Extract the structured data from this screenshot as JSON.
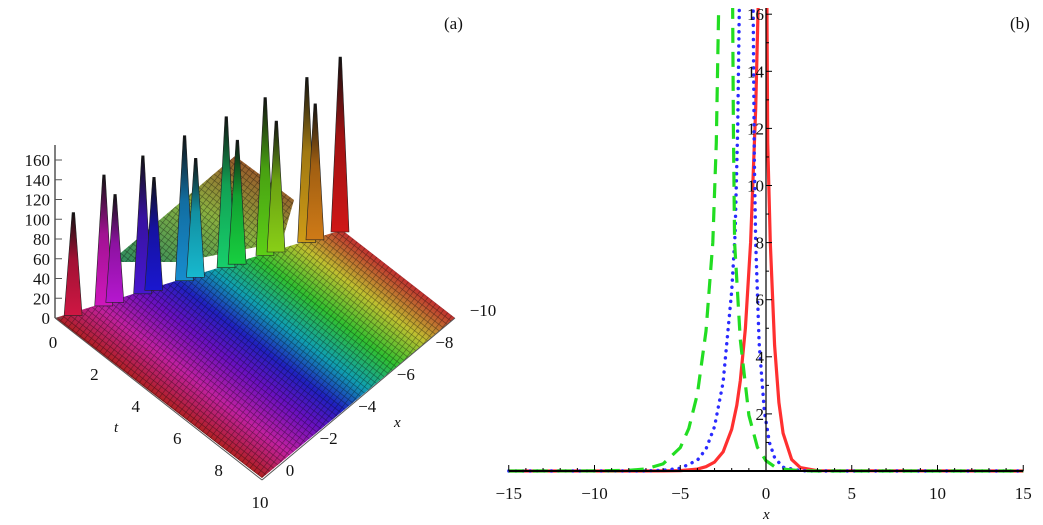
{
  "chart_data": [
    {
      "panel_label": "(a)",
      "type": "surface",
      "xlabel": "x",
      "tlabel": "t",
      "x_ticks": [
        "0",
        "−2",
        "−4",
        "−6",
        "−8",
        "−10"
      ],
      "x_tick_values": [
        0,
        -2,
        -4,
        -6,
        -8,
        -10
      ],
      "t_ticks": [
        "0",
        "2",
        "4",
        "6",
        "8",
        "10"
      ],
      "t_tick_values": [
        0,
        2,
        4,
        6,
        8,
        10
      ],
      "z_ticks": [
        "0",
        "20",
        "40",
        "60",
        "80",
        "100",
        "120",
        "140",
        "160"
      ],
      "z_tick_values": [
        0,
        20,
        40,
        60,
        80,
        100,
        120,
        140,
        160
      ],
      "xlim": [
        -10,
        0
      ],
      "tlim": [
        0,
        10
      ],
      "zlim": [
        0,
        160
      ],
      "peaks": [
        {
          "x": -0.4,
          "z": 99
        },
        {
          "x": -1.5,
          "z": 127
        },
        {
          "x": -1.9,
          "z": 104
        },
        {
          "x": -2.9,
          "z": 134
        },
        {
          "x": -3.3,
          "z": 109
        },
        {
          "x": -4.4,
          "z": 141
        },
        {
          "x": -4.8,
          "z": 115
        },
        {
          "x": -5.9,
          "z": 147
        },
        {
          "x": -6.3,
          "z": 120
        },
        {
          "x": -7.3,
          "z": 154
        },
        {
          "x": -7.7,
          "z": 127
        },
        {
          "x": -8.8,
          "z": 161
        },
        {
          "x": -9.1,
          "z": 132
        },
        {
          "x": -10,
          "z": 171
        }
      ]
    },
    {
      "panel_label": "(b)",
      "type": "line",
      "xlabel": "x",
      "xlim": [
        -15,
        15
      ],
      "ylim": [
        0,
        16
      ],
      "x_ticks": [
        "−15",
        "−10",
        "−5",
        "0",
        "5",
        "10",
        "15"
      ],
      "x_tick_values": [
        -15,
        -10,
        -5,
        0,
        5,
        10,
        15
      ],
      "y_ticks": [
        "2",
        "4",
        "6",
        "8",
        "10",
        "12",
        "14",
        "16"
      ],
      "y_tick_values": [
        2,
        4,
        6,
        8,
        10,
        12,
        14,
        16
      ],
      "series": [
        {
          "name": "solid",
          "color": "#ff3030",
          "style": "solid",
          "points": [
            [
              -15,
              0
            ],
            [
              -8,
              0
            ],
            [
              -6,
              0.003
            ],
            [
              -5,
              0.015
            ],
            [
              -4,
              0.066
            ],
            [
              -3.5,
              0.15
            ],
            [
              -3,
              0.31
            ],
            [
              -2.5,
              0.67
            ],
            [
              -2,
              1.46
            ],
            [
              -1.7,
              2.3
            ],
            [
              -1.5,
              3.16
            ],
            [
              -1.2,
              5.0
            ],
            [
              -0.9,
              8
            ],
            [
              -0.6,
              12.7
            ],
            [
              -0.45,
              16.5
            ],
            [
              0.05,
              16.5
            ],
            [
              0.1,
              11.5
            ],
            [
              0.25,
              8
            ],
            [
              0.5,
              4.4
            ],
            [
              0.75,
              2.4
            ],
            [
              1,
              1.32
            ],
            [
              1.5,
              0.4
            ],
            [
              2,
              0.12
            ],
            [
              3,
              0.01
            ],
            [
              15,
              0
            ]
          ]
        },
        {
          "name": "dotted",
          "color": "#2a2aff",
          "style": "dotted",
          "points": [
            [
              -15,
              0
            ],
            [
              -7,
              0.005
            ],
            [
              -6,
              0.023
            ],
            [
              -5,
              0.094
            ],
            [
              -4,
              0.38
            ],
            [
              -3.5,
              0.77
            ],
            [
              -3,
              1.55
            ],
            [
              -2.5,
              3.1
            ],
            [
              -2,
              6.3
            ],
            [
              -1.8,
              8.3
            ],
            [
              -1.65,
              12
            ],
            [
              -1.55,
              16.5
            ],
            [
              -0.75,
              16.5
            ],
            [
              -0.68,
              11
            ],
            [
              -0.6,
              8
            ],
            [
              -0.4,
              4.5
            ],
            [
              -0.1,
              2.1
            ],
            [
              0.2,
              1.0
            ],
            [
              0.5,
              0.47
            ],
            [
              1,
              0.13
            ],
            [
              2,
              0.015
            ],
            [
              2.5,
              0
            ],
            [
              15,
              0
            ]
          ]
        },
        {
          "name": "dashed",
          "color": "#22dd22",
          "style": "dashed",
          "points": [
            [
              -15,
              0
            ],
            [
              -10,
              0.002
            ],
            [
              -8,
              0.022
            ],
            [
              -7,
              0.074
            ],
            [
              -6,
              0.25
            ],
            [
              -5,
              0.82
            ],
            [
              -4.5,
              1.49
            ],
            [
              -4,
              2.7
            ],
            [
              -3.5,
              4.9
            ],
            [
              -3.1,
              8
            ],
            [
              -2.9,
              11.5
            ],
            [
              -2.75,
              16.5
            ],
            [
              -1.95,
              16.5
            ],
            [
              -1.9,
              12
            ],
            [
              -1.83,
              8
            ],
            [
              -1.5,
              4.6
            ],
            [
              -1,
              1.95
            ],
            [
              -0.5,
              0.83
            ],
            [
              0,
              0.36
            ],
            [
              0.5,
              0.15
            ],
            [
              1,
              0.065
            ],
            [
              2,
              0.012
            ],
            [
              3,
              0
            ],
            [
              15,
              0
            ]
          ]
        }
      ]
    }
  ]
}
